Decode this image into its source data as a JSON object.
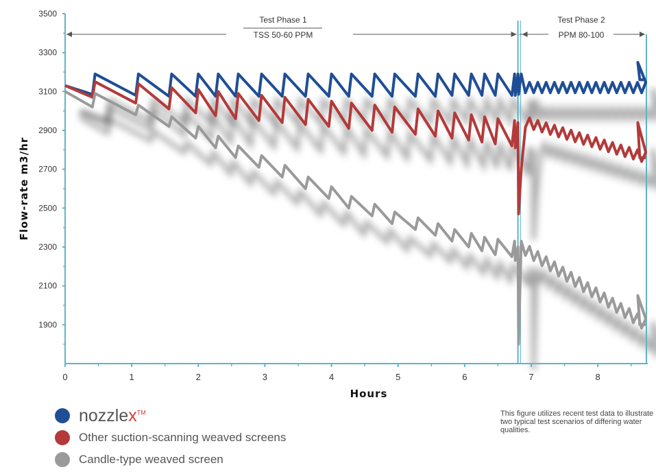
{
  "chart_data": {
    "type": "line",
    "xlabel": "Hours",
    "ylabel": "Flow-rate m3/hr",
    "xlim": [
      0,
      8.75
    ],
    "ylim": [
      1700,
      3500
    ],
    "x_ticks": [
      "0",
      "1",
      "2",
      "3",
      "4",
      "5",
      "6",
      "7",
      "8"
    ],
    "y_ticks": [
      "3500",
      "3300",
      "3100",
      "2900",
      "2700",
      "2500",
      "2300",
      "2100",
      "1900"
    ],
    "y_grid": false,
    "phases": [
      {
        "title": "Test Phase 1",
        "subtitle": "TSS 50-60 PPM",
        "x_start": 0,
        "x_end": 6.8
      },
      {
        "title": "Test Phase 2",
        "subtitle": "PPM 80-100",
        "x_start": 6.8,
        "x_end": 8.75
      }
    ],
    "series": [
      {
        "name": "nozzlex",
        "color": "#1f4e96",
        "cycle_peaks": [
          3130,
          3190,
          3190,
          3190,
          3190,
          3190,
          3190,
          3190,
          3190,
          3190,
          3190,
          3190,
          3190,
          3190,
          3190,
          3190,
          3190,
          3190,
          3190,
          3190,
          3190,
          3190,
          3190
        ],
        "cycle_lows": [
          3085,
          3080,
          3075,
          3075,
          3075,
          3075,
          3075,
          3075,
          3075,
          3075,
          3075,
          3075,
          3075,
          3075,
          3075,
          3080,
          3080,
          3080,
          3080,
          3080,
          3080,
          3085,
          3100
        ],
        "cycle_times": [
          0,
          0.45,
          1.1,
          1.6,
          2.0,
          2.3,
          2.6,
          2.95,
          3.3,
          3.65,
          4.0,
          4.3,
          4.65,
          4.95,
          5.3,
          5.6,
          5.85,
          6.1,
          6.3,
          6.5,
          6.75,
          6.8,
          6.85
        ],
        "phase2": {
          "mean": 3120,
          "amplitude": 45,
          "end": 3160,
          "spike": 3250
        }
      },
      {
        "name": "Other suction-scanning weaved screens",
        "color": "#b33a3a",
        "cycle_peaks": [
          3130,
          3150,
          3140,
          3120,
          3110,
          3100,
          3090,
          3080,
          3070,
          3060,
          3050,
          3040,
          3030,
          3020,
          3010,
          3000,
          2990,
          2980,
          2970,
          2960,
          2950,
          2940,
          2700
        ],
        "cycle_lows": [
          3070,
          3040,
          3010,
          2990,
          2975,
          2960,
          2950,
          2940,
          2930,
          2920,
          2910,
          2900,
          2890,
          2880,
          2870,
          2860,
          2850,
          2840,
          2830,
          2820,
          2810,
          2470,
          2650
        ],
        "cycle_times": [
          0,
          0.45,
          1.1,
          1.6,
          2.0,
          2.3,
          2.6,
          2.95,
          3.3,
          3.65,
          4.0,
          4.3,
          4.65,
          4.95,
          5.3,
          5.6,
          5.85,
          6.1,
          6.3,
          6.5,
          6.75,
          6.8,
          6.85
        ],
        "phase2": {
          "mean": 2820,
          "start": 2950,
          "end": 2760,
          "amplitude": 45,
          "spike": 2940
        }
      },
      {
        "name": "Candle-type weaved screen",
        "color": "#9a9a9a",
        "cycle_peaks": [
          3100,
          3090,
          3030,
          2970,
          2920,
          2870,
          2820,
          2770,
          2720,
          2660,
          2610,
          2560,
          2520,
          2480,
          2450,
          2420,
          2390,
          2370,
          2350,
          2340,
          2330,
          2300,
          2330
        ],
        "cycle_lows": [
          3020,
          2980,
          2920,
          2860,
          2810,
          2760,
          2710,
          2660,
          2600,
          2550,
          2500,
          2460,
          2420,
          2390,
          2360,
          2330,
          2300,
          2280,
          2260,
          2250,
          2230,
          1800,
          2240
        ],
        "cycle_times": [
          0,
          0.45,
          1.1,
          1.6,
          2.0,
          2.3,
          2.6,
          2.95,
          3.3,
          3.65,
          4.0,
          4.3,
          4.65,
          4.95,
          5.3,
          5.6,
          5.85,
          6.1,
          6.3,
          6.5,
          6.75,
          6.8,
          6.85
        ],
        "phase2": {
          "start": 2300,
          "end": 1900,
          "amplitude": 50,
          "spike": 2050
        }
      }
    ]
  },
  "legend": {
    "items": [
      {
        "brand_main": "nozzle",
        "brand_x": "x",
        "brand_tm": "TM",
        "color": "#1f4e96"
      },
      {
        "label": "Other suction-scanning weaved screens",
        "color": "#b33a3a"
      },
      {
        "label": "Candle-type weaved screen",
        "color": "#9a9a9a"
      }
    ]
  },
  "note": "This figure utilizes recent test data to illustrate two typical test scenarios of differing water qualities."
}
